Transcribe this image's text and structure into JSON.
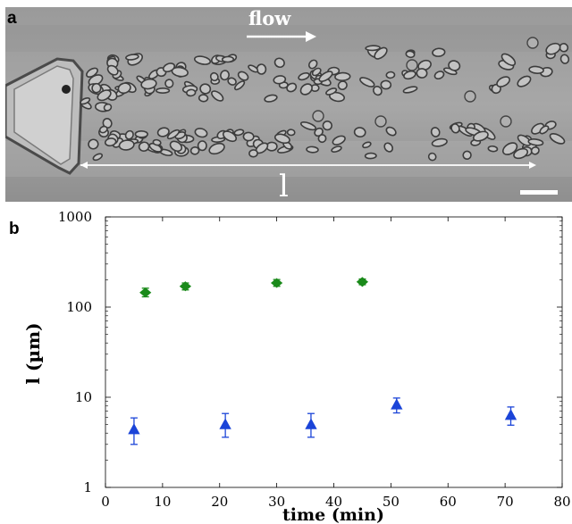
{
  "panel_a": {
    "label": "a",
    "flow_label": "flow",
    "length_label": "l"
  },
  "chart_data": {
    "type": "scatter",
    "panel_label": "b",
    "title": "",
    "xlabel": "time (min)",
    "ylabel": "l (µm)",
    "xlim": [
      0,
      80
    ],
    "ylim": [
      1,
      1000
    ],
    "yscale": "log",
    "grid": false,
    "x_ticks": [
      "0",
      "10",
      "20",
      "30",
      "40",
      "50",
      "60",
      "70",
      "80"
    ],
    "y_ticks": [
      "1",
      "10",
      "100",
      "1000"
    ],
    "series": [
      {
        "marker": "diamond",
        "color": "#1a8a1a",
        "x": [
          7,
          14,
          30,
          45
        ],
        "y": [
          145,
          170,
          185,
          190
        ],
        "y_err_low": [
          130,
          155,
          170,
          177
        ],
        "y_err_high": [
          162,
          185,
          202,
          205
        ]
      },
      {
        "marker": "triangle",
        "color": "#1b44d8",
        "x": [
          5,
          21,
          36,
          51,
          71
        ],
        "y": [
          4.3,
          4.9,
          4.9,
          8.1,
          6.2
        ],
        "y_err_low": [
          3.0,
          3.6,
          3.6,
          6.7,
          4.9
        ],
        "y_err_high": [
          5.9,
          6.6,
          6.6,
          9.8,
          7.8
        ]
      }
    ]
  }
}
